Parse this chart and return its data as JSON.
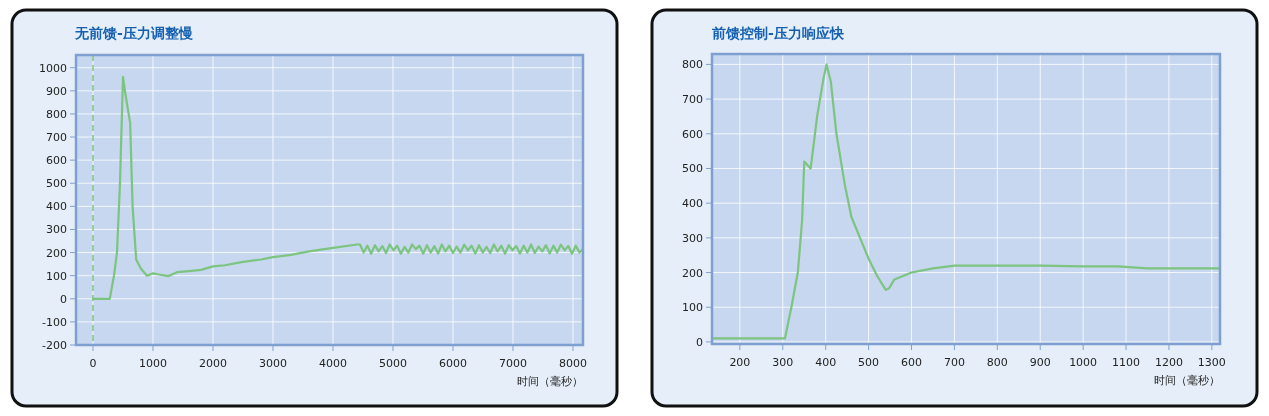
{
  "chart_data": [
    {
      "type": "line",
      "title": "无前馈-压力调整慢",
      "xlabel": "时间（毫秒）",
      "xlim": [
        -283,
        8167
      ],
      "ylim": [
        -200,
        1055
      ],
      "xticks": [
        0,
        1000,
        2000,
        3000,
        4000,
        5000,
        6000,
        7000,
        8000
      ],
      "yticks": [
        -200,
        -100,
        0,
        100,
        200,
        300,
        400,
        500,
        600,
        700,
        800,
        900,
        1000
      ],
      "grid": true,
      "marker": "none",
      "line_style": "solid",
      "ref_lines": [
        {
          "axis": "x",
          "value": 0,
          "color": "#7cc47f",
          "line_style": "dashed"
        }
      ],
      "series": [
        {
          "color": "#7cc47f",
          "x": [
            0,
            280,
            350,
            400,
            450,
            500,
            550,
            620,
            660,
            720,
            800,
            900,
            1000,
            1100,
            1250,
            1400,
            1600,
            1800,
            2000,
            2200,
            2500,
            2800,
            3000,
            3300,
            3600,
            4000,
            4400,
            4450,
            4512,
            4574,
            4636,
            4698,
            4760,
            4822,
            4884,
            4946,
            5008,
            5070,
            5132,
            5194,
            5256,
            5318,
            5380,
            5442,
            5504,
            5566,
            5628,
            5690,
            5752,
            5814,
            5876,
            5938,
            6000,
            6062,
            6124,
            6186,
            6248,
            6310,
            6372,
            6434,
            6496,
            6558,
            6620,
            6682,
            6744,
            6806,
            6868,
            6930,
            6992,
            7054,
            7116,
            7178,
            7240,
            7302,
            7364,
            7426,
            7488,
            7550,
            7612,
            7674,
            7736,
            7798,
            7860,
            7922,
            7984,
            8046,
            8108,
            8167
          ],
          "values": [
            0,
            0,
            100,
            200,
            500,
            960,
            870,
            760,
            400,
            170,
            130,
            100,
            110,
            105,
            98,
            115,
            120,
            125,
            140,
            145,
            160,
            170,
            180,
            190,
            205,
            220,
            235,
            235,
            200,
            230,
            195,
            232,
            205,
            228,
            198,
            235,
            210,
            230,
            195,
            225,
            200,
            235,
            215,
            230,
            195,
            232,
            200,
            228,
            196,
            235,
            205,
            230,
            198,
            226,
            200,
            234,
            210,
            230,
            196,
            232,
            200,
            225,
            198,
            235,
            205,
            230,
            195,
            232,
            210,
            228,
            196,
            230,
            200,
            235,
            198,
            226,
            205,
            232,
            196,
            230,
            200,
            234,
            210,
            228,
            195,
            230,
            200,
            215
          ]
        }
      ]
    },
    {
      "type": "line",
      "title": "前馈控制-压力响应快",
      "xlabel": "时间（毫秒）",
      "xlim": [
        135,
        1319
      ],
      "ylim": [
        -6,
        830
      ],
      "xticks": [
        200,
        300,
        400,
        500,
        600,
        700,
        800,
        900,
        1000,
        1100,
        1200,
        1300
      ],
      "yticks": [
        0,
        100,
        200,
        300,
        400,
        500,
        600,
        700,
        800
      ],
      "grid": true,
      "marker": "none",
      "line_style": "solid",
      "series": [
        {
          "color": "#7cc47f",
          "x": [
            135,
            305,
            320,
            335,
            345,
            350,
            365,
            380,
            395,
            402,
            412,
            425,
            445,
            460,
            480,
            500,
            520,
            540,
            548,
            560,
            600,
            650,
            700,
            800,
            900,
            1000,
            1080,
            1150,
            1200,
            1319
          ],
          "values": [
            10,
            10,
            100,
            200,
            350,
            520,
            500,
            650,
            760,
            800,
            750,
            600,
            450,
            360,
            300,
            240,
            190,
            150,
            155,
            180,
            200,
            212,
            220,
            220,
            220,
            218,
            218,
            212,
            212,
            212
          ]
        }
      ]
    }
  ]
}
